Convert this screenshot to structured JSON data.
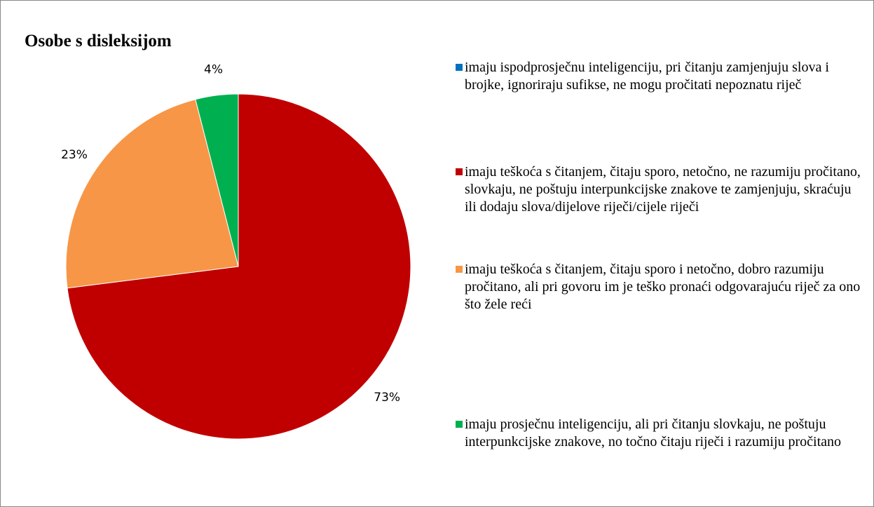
{
  "chart_data": {
    "type": "pie",
    "title": "Osobe s disleksijom",
    "categories": [
      "imaju ispodprosječnu inteligenciju, pri čitanju zamjenjuju slova i brojke, ignoriraju sufikse, ne mogu pročitati nepoznatu riječ",
      "imaju teškoća s čitanjem, čitaju sporo, netočno, ne razumiju pročitano, slovkaju, ne poštuju interpunkcijske znakove te zamjenjuju, skraćuju ili dodaju slova/dijelove riječi/cijele riječi",
      "imaju teškoća s čitanjem, čitaju sporo i netočno, dobro razumiju pročitano, ali pri govoru im je teško pronaći odgovarajuću riječ za ono što žele reći",
      "imaju prosječnu inteligenciju, ali pri čitanju slovkaju, ne poštuju interpunkcijske znakove, no točno čitaju riječi i razumiju pročitano"
    ],
    "values": [
      0,
      73,
      23,
      4
    ],
    "value_labels": [
      null,
      "73%",
      "23%",
      "4%"
    ],
    "colors": [
      "#0070c0",
      "#c00000",
      "#f79646",
      "#00b050"
    ],
    "legend": "right"
  }
}
